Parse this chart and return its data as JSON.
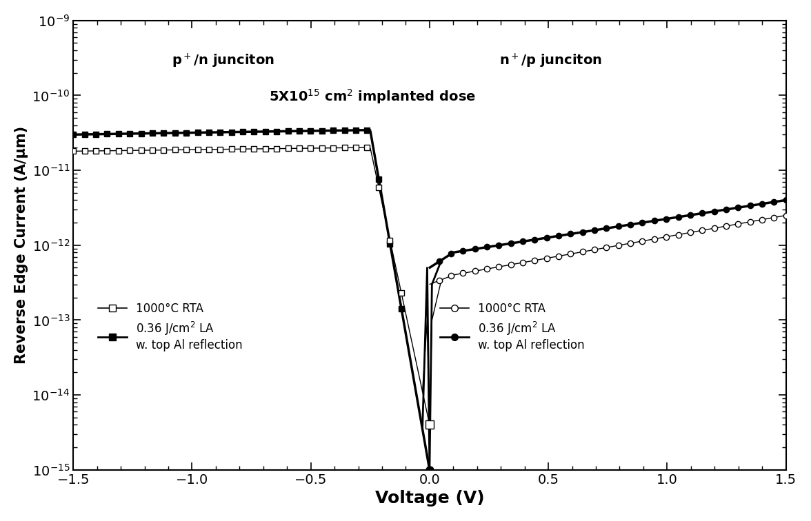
{
  "xlabel": "Voltage (V)",
  "ylabel": "Reverse Edge Current (A/μm)",
  "xlim": [
    -1.5,
    1.5
  ],
  "ylim_log_min": -15,
  "ylim_log_max": -9,
  "ann_pn": "p$^+$/n junciton",
  "ann_np": "n$^+$/p junciton",
  "ann_dose": "5X10$^{15}$ cm$^2$ implanted dose",
  "leg_rta": "1000°C RTA",
  "leg_la": "0.36 J/cm$^2$ LA\nw. top Al reflection",
  "background_color": "#ffffff"
}
